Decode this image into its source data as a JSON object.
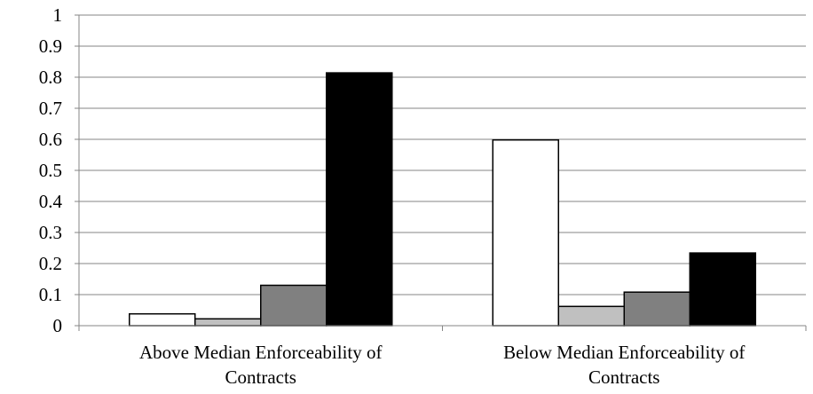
{
  "chart_data": {
    "type": "bar",
    "title": "",
    "xlabel": "",
    "ylabel": "",
    "categories": [
      [
        "Above Median Enforceability of",
        "Contracts"
      ],
      [
        "Below Median Enforceability of",
        "Contracts"
      ]
    ],
    "series": [
      {
        "values": [
          0.038,
          0.598
        ],
        "color": "#ffffff"
      },
      {
        "values": [
          0.022,
          0.062
        ],
        "color": "#c0c0c0"
      },
      {
        "values": [
          0.13,
          0.108
        ],
        "color": "#808080"
      },
      {
        "values": [
          0.814,
          0.234
        ],
        "color": "#000000"
      }
    ],
    "ylim": [
      0,
      1
    ],
    "yticks": [
      "0",
      "0.1",
      "0.2",
      "0.3",
      "0.4",
      "0.5",
      "0.6",
      "0.7",
      "0.8",
      "0.9",
      "1"
    ],
    "grid": true,
    "legend": "none",
    "colors": {
      "grid": "#868686",
      "axis": "#868686",
      "bar_stroke": "#000000"
    }
  }
}
